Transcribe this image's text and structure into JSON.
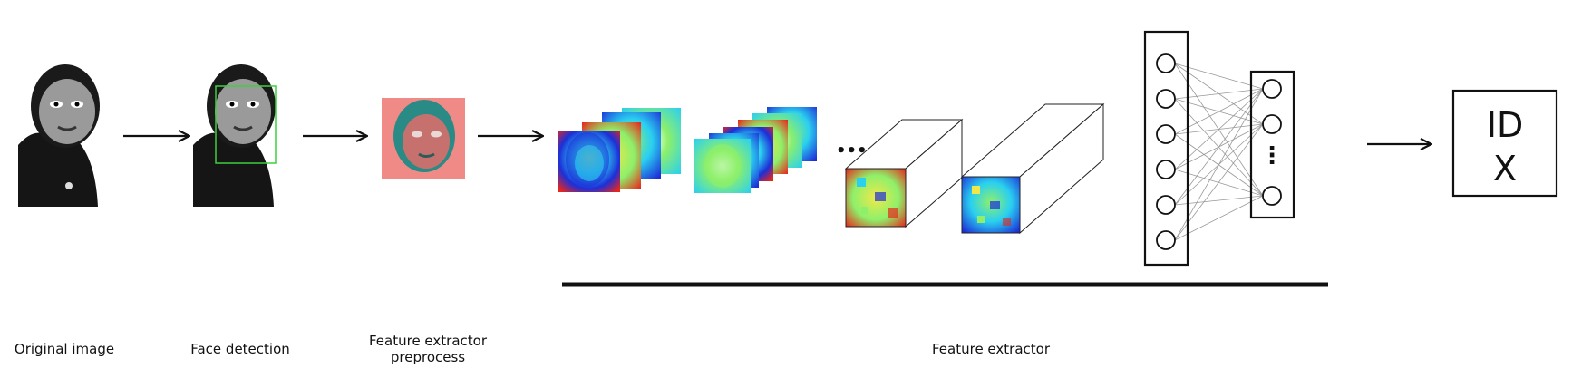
{
  "stages": {
    "original_image": "Original image",
    "face_detection": "Face detection",
    "preprocess_line1": "Feature extractor",
    "preprocess_line2": "preprocess",
    "feature_extractor": "Feature extractor"
  },
  "conv_ellipsis": "•••",
  "output": {
    "line1": "ID",
    "line2": "X"
  },
  "network": {
    "input_nodes": 6,
    "output_nodes_top": 2,
    "output_nodes_bottom": 1,
    "ellipsis": "⋮"
  },
  "colors": {
    "stroke": "#111111",
    "detection_box": "#3ecf3e",
    "preprocess_bg": "#f08a86",
    "preprocess_face": "#2a8a86",
    "heat_red": "#e8261c",
    "heat_blue": "#1d2fd8",
    "heat_cyan": "#2ad0f0",
    "heat_green": "#8ef06a",
    "heat_yellow": "#f0e84a"
  }
}
